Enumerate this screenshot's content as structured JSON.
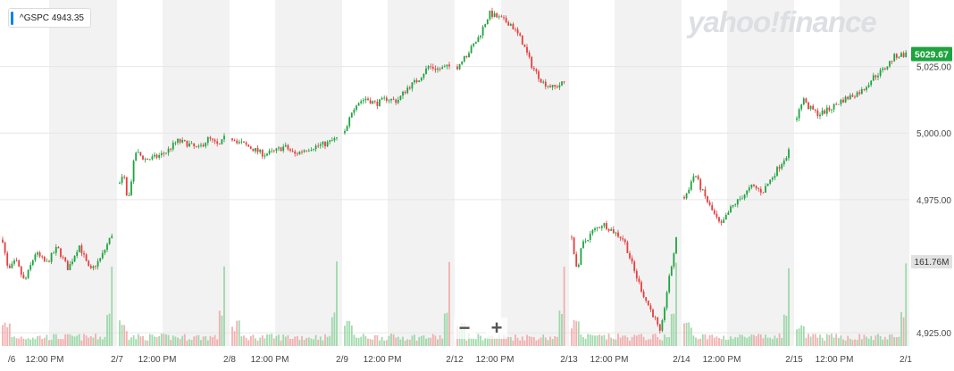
{
  "watermark": "yahoo!finance",
  "ticker": {
    "symbol": "^GSPC",
    "value": "4943.35",
    "color": "#0081f2"
  },
  "zoom": {
    "minus": "−",
    "plus": "+"
  },
  "colors": {
    "up": "#1ea33f",
    "down": "#e63d3d",
    "shade": "#f2f2f2",
    "grid": "#e6e6e6",
    "price_tag": "#1ea33f",
    "volume_tag": "#e1e1e1"
  },
  "chart_data": {
    "type": "candlestick",
    "symbol": "^GSPC",
    "ylim": [
      4920,
      5050
    ],
    "y_ticks": [
      {
        "value": 4925,
        "label": "4,925.00"
      },
      {
        "value": 4975,
        "label": "4,975.00"
      },
      {
        "value": 5000,
        "label": "5,000.00"
      },
      {
        "value": 5025,
        "label": "5,025.00"
      }
    ],
    "x_labels": [
      "/6",
      "12:00 PM",
      "2/7",
      "12:00 PM",
      "2/8",
      "12:00 PM",
      "2/9",
      "12:00 PM",
      "2/12",
      "12:00 PM",
      "2/13",
      "12:00 PM",
      "2/14",
      "12:00 PM",
      "2/15",
      "12:00 PM",
      "2/1"
    ],
    "last_price_label": "5029.67",
    "last_price": 5029.67,
    "volume_label": "161.76M",
    "sessions": [
      {
        "path": [
          [
            0,
            4960
          ],
          [
            0.05,
            4948
          ],
          [
            0.12,
            4952
          ],
          [
            0.2,
            4944
          ],
          [
            0.3,
            4955
          ],
          [
            0.4,
            4951
          ],
          [
            0.5,
            4957
          ],
          [
            0.6,
            4949
          ],
          [
            0.7,
            4958
          ],
          [
            0.8,
            4948
          ],
          [
            0.9,
            4953
          ],
          [
            1,
            4962
          ]
        ]
      },
      {
        "path": [
          [
            0,
            4981
          ],
          [
            0.04,
            4984
          ],
          [
            0.08,
            4974
          ],
          [
            0.15,
            4993
          ],
          [
            0.25,
            4990
          ],
          [
            0.35,
            4991
          ],
          [
            0.45,
            4993
          ],
          [
            0.55,
            4997
          ],
          [
            0.65,
            4996
          ],
          [
            0.75,
            4994
          ],
          [
            0.85,
            4998
          ],
          [
            0.95,
            4995
          ],
          [
            1,
            4998
          ]
        ]
      },
      {
        "path": [
          [
            0,
            4998
          ],
          [
            0.1,
            4996
          ],
          [
            0.2,
            4994
          ],
          [
            0.3,
            4992
          ],
          [
            0.4,
            4993
          ],
          [
            0.5,
            4995
          ],
          [
            0.6,
            4992
          ],
          [
            0.7,
            4994
          ],
          [
            0.8,
            4995
          ],
          [
            0.9,
            4996
          ],
          [
            1,
            4998
          ]
        ]
      },
      {
        "path": [
          [
            0,
            5000
          ],
          [
            0.1,
            5011
          ],
          [
            0.2,
            5013
          ],
          [
            0.3,
            5011
          ],
          [
            0.4,
            5013
          ],
          [
            0.5,
            5012
          ],
          [
            0.6,
            5017
          ],
          [
            0.7,
            5020
          ],
          [
            0.8,
            5025
          ],
          [
            0.9,
            5024
          ],
          [
            1,
            5025
          ]
        ]
      },
      {
        "path": [
          [
            0,
            5025
          ],
          [
            0.1,
            5030
          ],
          [
            0.2,
            5036
          ],
          [
            0.3,
            5045
          ],
          [
            0.4,
            5043
          ],
          [
            0.5,
            5041
          ],
          [
            0.6,
            5035
          ],
          [
            0.7,
            5025
          ],
          [
            0.8,
            5019
          ],
          [
            0.9,
            5017
          ],
          [
            1,
            5019
          ]
        ]
      },
      {
        "path": [
          [
            0,
            4961
          ],
          [
            0.05,
            4948
          ],
          [
            0.1,
            4958
          ],
          [
            0.2,
            4963
          ],
          [
            0.3,
            4966
          ],
          [
            0.4,
            4963
          ],
          [
            0.5,
            4960
          ],
          [
            0.6,
            4948
          ],
          [
            0.7,
            4938
          ],
          [
            0.8,
            4930
          ],
          [
            0.85,
            4924
          ],
          [
            0.9,
            4938
          ],
          [
            1,
            4960
          ]
        ]
      },
      {
        "path": [
          [
            0,
            4976
          ],
          [
            0.05,
            4980
          ],
          [
            0.1,
            4985
          ],
          [
            0.15,
            4980
          ],
          [
            0.25,
            4972
          ],
          [
            0.35,
            4965
          ],
          [
            0.45,
            4972
          ],
          [
            0.55,
            4976
          ],
          [
            0.65,
            4980
          ],
          [
            0.75,
            4978
          ],
          [
            0.85,
            4984
          ],
          [
            1,
            4993
          ]
        ]
      },
      {
        "path": [
          [
            0,
            5005
          ],
          [
            0.05,
            5013
          ],
          [
            0.1,
            5010
          ],
          [
            0.2,
            5007
          ],
          [
            0.3,
            5009
          ],
          [
            0.4,
            5012
          ],
          [
            0.5,
            5014
          ],
          [
            0.6,
            5016
          ],
          [
            0.7,
            5021
          ],
          [
            0.8,
            5024
          ],
          [
            0.9,
            5029
          ],
          [
            1,
            5029.67
          ]
        ]
      }
    ]
  }
}
